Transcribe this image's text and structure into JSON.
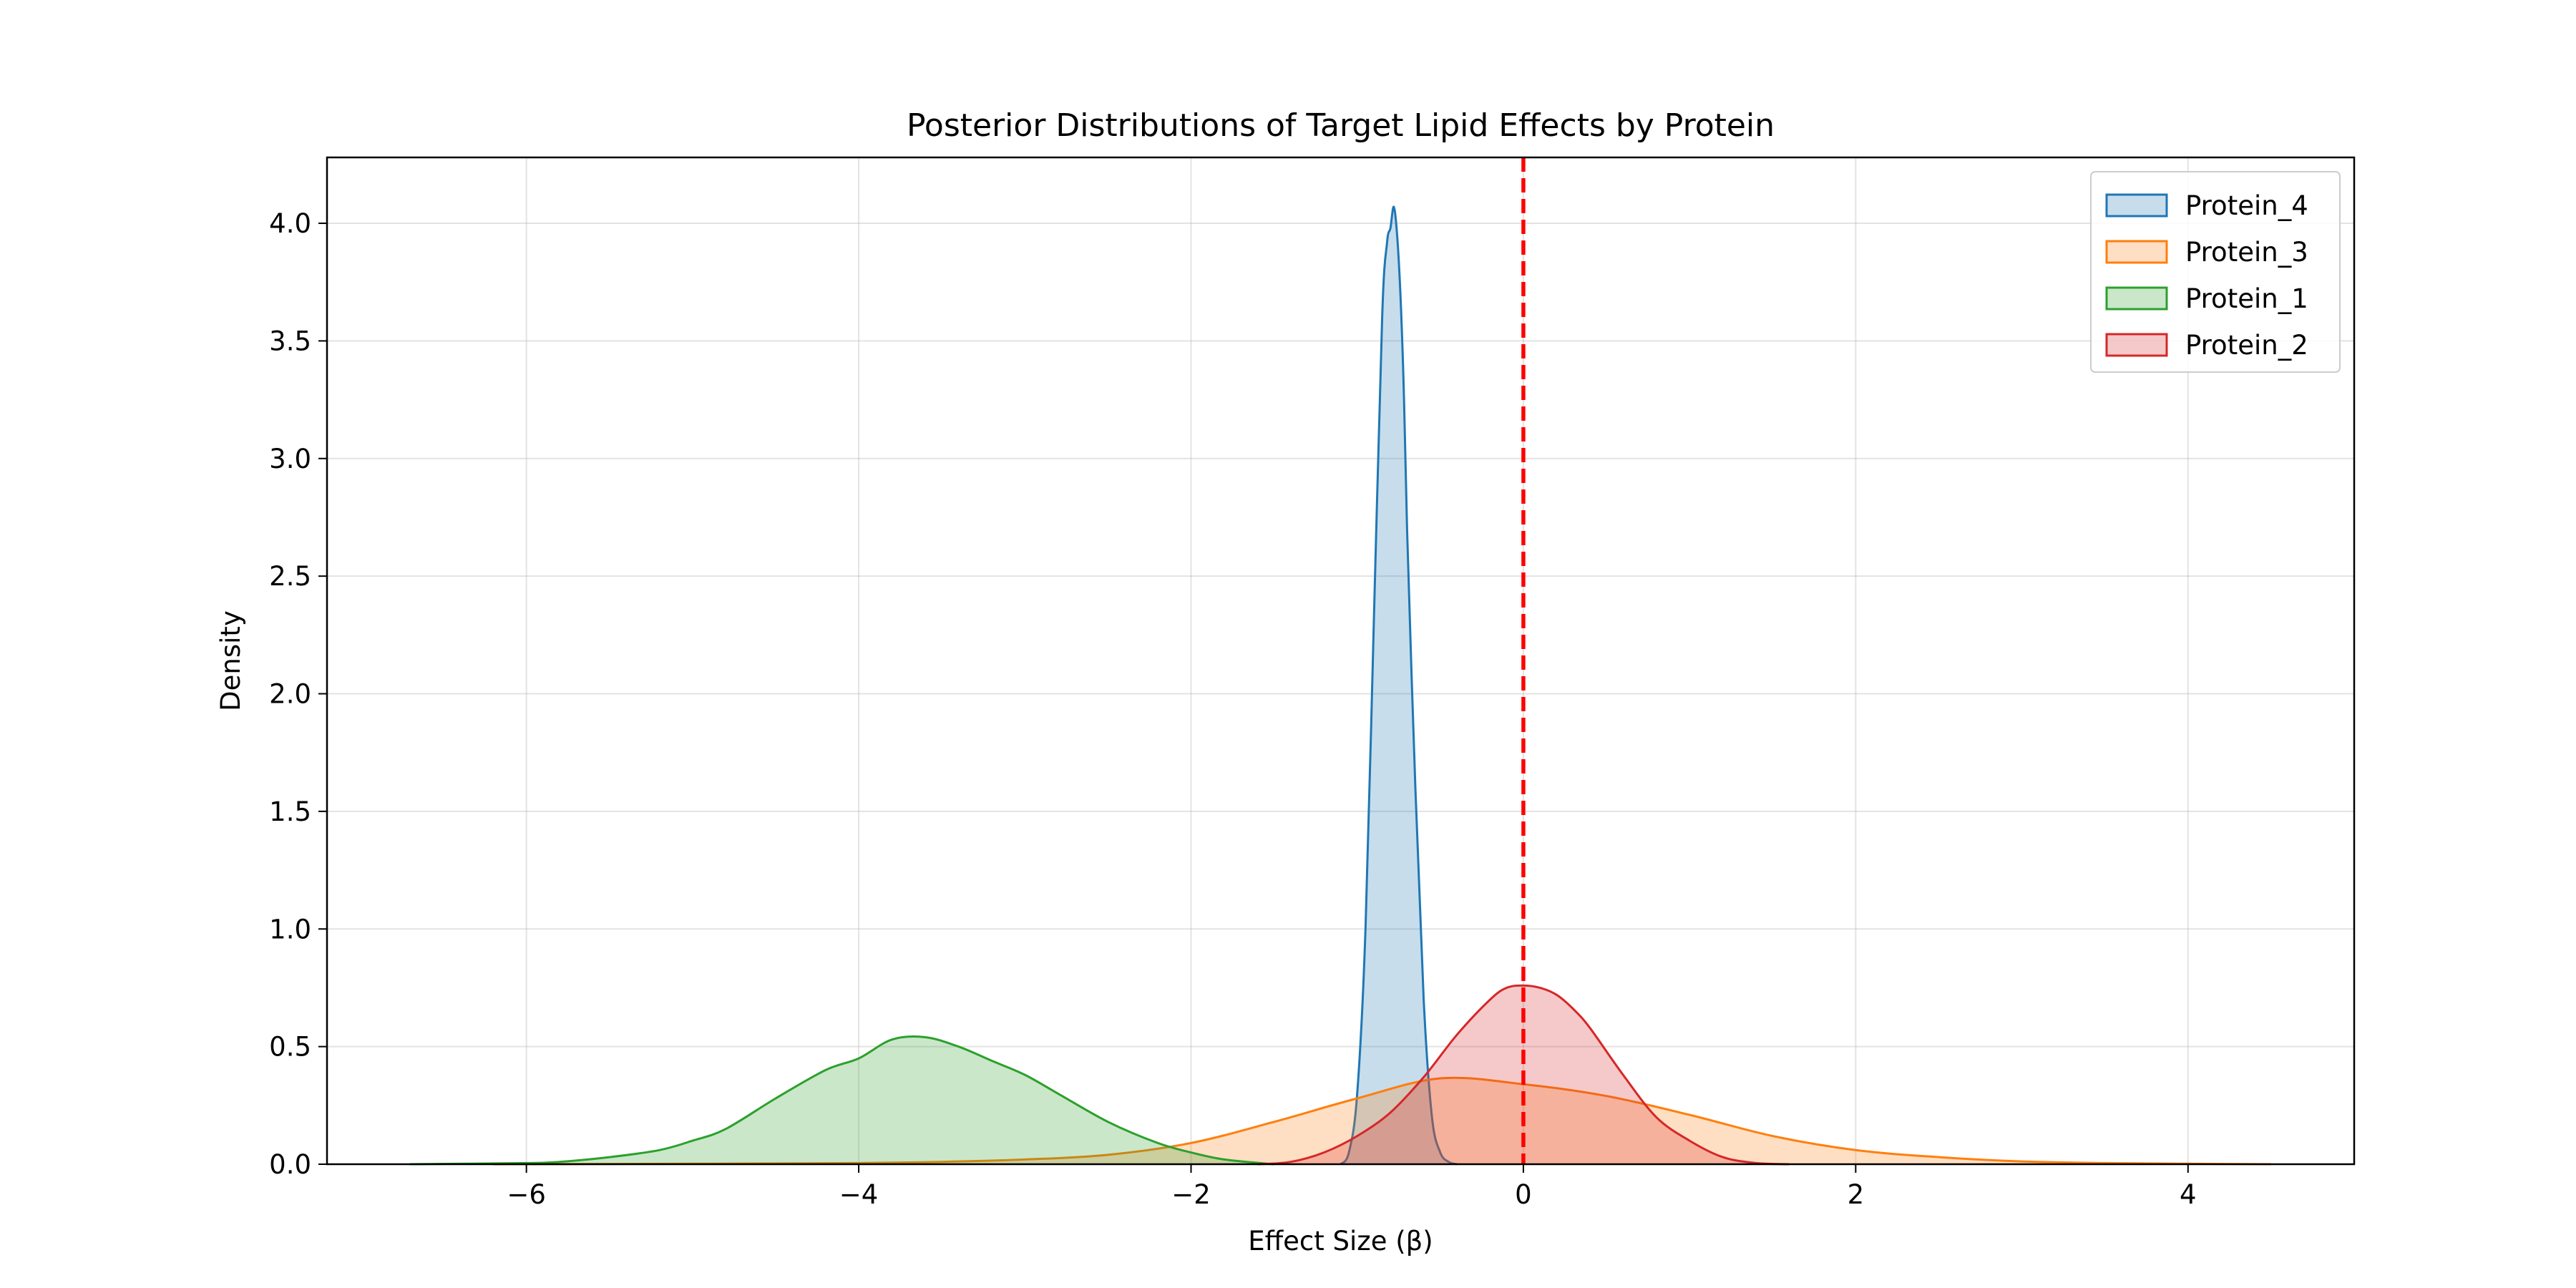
{
  "chart_data": {
    "type": "area",
    "title": "Posterior Distributions of Target Lipid Effects by Protein",
    "xlabel": "Effect Size (β)",
    "ylabel": "Density",
    "xlim": [
      -7.2,
      5.0
    ],
    "ylim": [
      0,
      4.28
    ],
    "xticks": [
      -6,
      -4,
      -2,
      0,
      2,
      4
    ],
    "xtick_labels": [
      "−6",
      "−4",
      "−2",
      "0",
      "2",
      "4"
    ],
    "yticks": [
      0.0,
      0.5,
      1.0,
      1.5,
      2.0,
      2.5,
      3.0,
      3.5,
      4.0
    ],
    "ytick_labels": [
      "0.0",
      "0.5",
      "1.0",
      "1.5",
      "2.0",
      "2.5",
      "3.0",
      "3.5",
      "4.0"
    ],
    "grid": true,
    "legend_position": "top-right",
    "reference_line": {
      "x": 0,
      "color": "#ff0000",
      "style": "dashed"
    },
    "series": [
      {
        "name": "Protein_4",
        "color": "#1f77b4",
        "x": [
          -1.1,
          -1.05,
          -1.0,
          -0.95,
          -0.9,
          -0.85,
          -0.82,
          -0.8,
          -0.78,
          -0.76,
          -0.74,
          -0.72,
          -0.7,
          -0.65,
          -0.6,
          -0.55,
          -0.5,
          -0.45,
          -0.4
        ],
        "y": [
          0.0,
          0.05,
          0.3,
          1.0,
          2.3,
          3.6,
          3.92,
          3.98,
          4.07,
          3.95,
          3.7,
          3.3,
          2.7,
          1.6,
          0.7,
          0.2,
          0.05,
          0.01,
          0.0
        ]
      },
      {
        "name": "Protein_3",
        "color": "#ff7f0e",
        "x": [
          -6.2,
          -5.0,
          -4.0,
          -3.5,
          -3.0,
          -2.5,
          -2.0,
          -1.5,
          -1.0,
          -0.5,
          0.0,
          0.5,
          1.0,
          1.5,
          2.0,
          2.5,
          3.0,
          3.5,
          4.0,
          4.5
        ],
        "y": [
          0.0,
          0.002,
          0.005,
          0.01,
          0.02,
          0.04,
          0.09,
          0.18,
          0.28,
          0.365,
          0.34,
          0.29,
          0.21,
          0.12,
          0.06,
          0.03,
          0.012,
          0.005,
          0.002,
          0.0
        ]
      },
      {
        "name": "Protein_1",
        "color": "#2ca02c",
        "x": [
          -6.7,
          -6.0,
          -5.8,
          -5.5,
          -5.2,
          -5.0,
          -4.8,
          -4.5,
          -4.2,
          -4.0,
          -3.8,
          -3.6,
          -3.4,
          -3.2,
          -3.0,
          -2.8,
          -2.5,
          -2.2,
          -2.0,
          -1.8,
          -1.5
        ],
        "y": [
          0.0,
          0.005,
          0.01,
          0.03,
          0.06,
          0.1,
          0.15,
          0.28,
          0.4,
          0.45,
          0.53,
          0.54,
          0.5,
          0.44,
          0.38,
          0.3,
          0.18,
          0.09,
          0.05,
          0.02,
          0.0
        ]
      },
      {
        "name": "Protein_2",
        "color": "#d62728",
        "x": [
          -1.6,
          -1.4,
          -1.2,
          -1.0,
          -0.8,
          -0.6,
          -0.4,
          -0.2,
          -0.1,
          0.0,
          0.1,
          0.2,
          0.3,
          0.4,
          0.6,
          0.8,
          1.0,
          1.2,
          1.4,
          1.6
        ],
        "y": [
          0.0,
          0.01,
          0.05,
          0.12,
          0.22,
          0.37,
          0.55,
          0.7,
          0.75,
          0.76,
          0.75,
          0.72,
          0.66,
          0.58,
          0.38,
          0.2,
          0.1,
          0.03,
          0.005,
          0.0
        ]
      }
    ]
  }
}
